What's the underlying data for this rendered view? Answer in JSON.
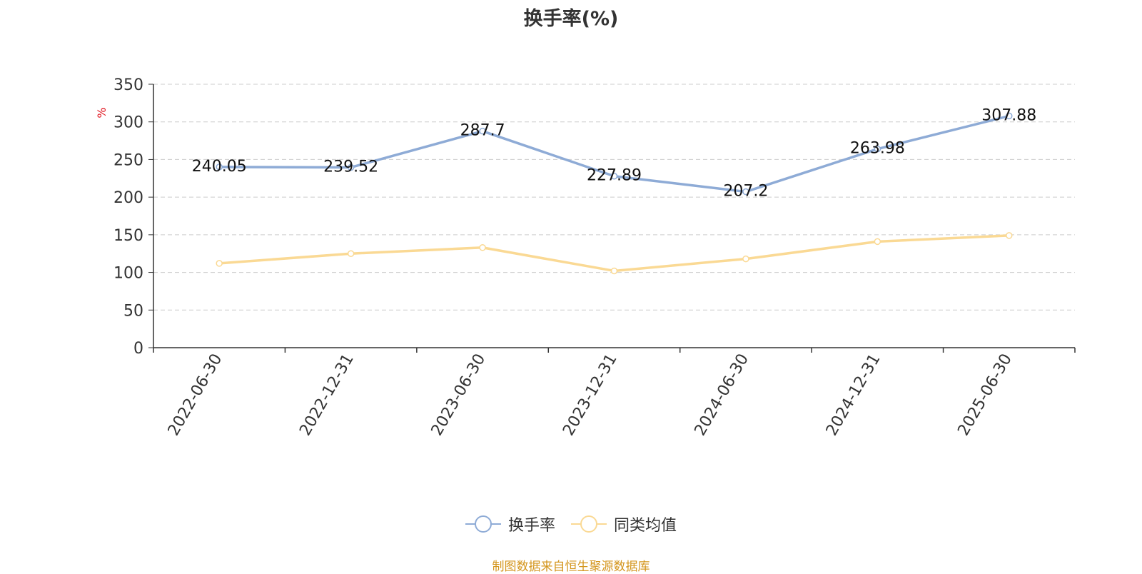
{
  "chart_data": {
    "type": "line",
    "title": "换手率(%)",
    "ylabel": "%",
    "ylim": [
      0,
      350
    ],
    "yticks": [
      0,
      50,
      100,
      150,
      200,
      250,
      300,
      350
    ],
    "categories": [
      "2022-06-30",
      "2022-12-31",
      "2023-06-30",
      "2023-12-31",
      "2024-06-30",
      "2024-12-31",
      "2025-06-30"
    ],
    "series": [
      {
        "name": "换手率",
        "color": "#8eabd6",
        "values": [
          240.05,
          239.52,
          287.7,
          227.89,
          207.2,
          263.98,
          307.88
        ],
        "labels": [
          "240.05",
          "239.52",
          "287.7",
          "227.89",
          "207.2",
          "263.98",
          "307.88"
        ]
      },
      {
        "name": "同类均值",
        "color": "#fad994",
        "values": [
          112,
          125,
          133,
          102,
          118,
          141,
          149
        ]
      }
    ],
    "grid": true,
    "legend_position": "bottom"
  },
  "source_note": "制图数据来自恒生聚源数据库"
}
